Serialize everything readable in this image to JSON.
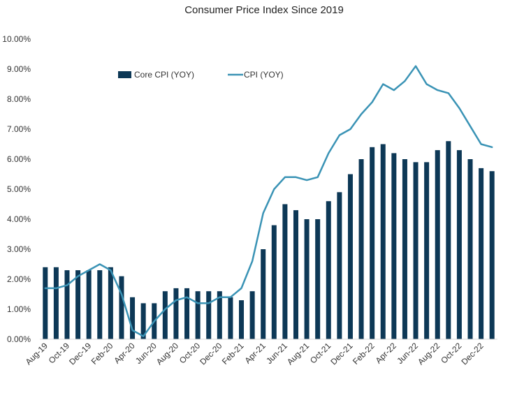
{
  "chart_data": {
    "type": "bar",
    "title": "Consumer Price Index Since 2019",
    "xlabel": "",
    "ylabel": "",
    "ylim": [
      0,
      10
    ],
    "yticks": [
      "0.00%",
      "1.00%",
      "2.00%",
      "3.00%",
      "4.00%",
      "5.00%",
      "6.00%",
      "7.00%",
      "8.00%",
      "9.00%",
      "10.00%"
    ],
    "grid": false,
    "legend_position": "top-left",
    "colors": {
      "bar": "#0d3856",
      "line": "#3a93b5"
    },
    "categories": [
      "Aug-19",
      "Sep-19",
      "Oct-19",
      "Nov-19",
      "Dec-19",
      "Jan-20",
      "Feb-20",
      "Mar-20",
      "Apr-20",
      "May-20",
      "Jun-20",
      "Jul-20",
      "Aug-20",
      "Sep-20",
      "Oct-20",
      "Nov-20",
      "Dec-20",
      "Jan-21",
      "Feb-21",
      "Mar-21",
      "Apr-21",
      "May-21",
      "Jun-21",
      "Jul-21",
      "Aug-21",
      "Sep-21",
      "Oct-21",
      "Nov-21",
      "Dec-21",
      "Jan-22",
      "Feb-22",
      "Mar-22",
      "Apr-22",
      "May-22",
      "Jun-22",
      "Jul-22",
      "Aug-22",
      "Sep-22",
      "Oct-22",
      "Nov-22",
      "Dec-22",
      "Jan-23"
    ],
    "xtick_labels": [
      "Aug-19",
      "Oct-19",
      "Dec-19",
      "Feb-20",
      "Apr-20",
      "Jun-20",
      "Aug-20",
      "Oct-20",
      "Dec-20",
      "Feb-21",
      "Apr-21",
      "Jun-21",
      "Aug-21",
      "Oct-21",
      "Dec-21",
      "Feb-22",
      "Apr-22",
      "Jun-22",
      "Aug-22",
      "Oct-22",
      "Dec-22"
    ],
    "series": [
      {
        "name": "Core CPI (YOY)",
        "kind": "bar",
        "values": [
          2.4,
          2.4,
          2.3,
          2.3,
          2.3,
          2.3,
          2.4,
          2.1,
          1.4,
          1.2,
          1.2,
          1.6,
          1.7,
          1.7,
          1.6,
          1.6,
          1.6,
          1.4,
          1.3,
          1.6,
          3.0,
          3.8,
          4.5,
          4.3,
          4.0,
          4.0,
          4.6,
          4.9,
          5.5,
          6.0,
          6.4,
          6.5,
          6.2,
          6.0,
          5.9,
          5.9,
          6.3,
          6.6,
          6.3,
          6.0,
          5.7,
          5.6
        ]
      },
      {
        "name": "CPI (YOY)",
        "kind": "line",
        "values": [
          1.7,
          1.7,
          1.8,
          2.1,
          2.3,
          2.5,
          2.3,
          1.5,
          0.3,
          0.1,
          0.6,
          1.0,
          1.3,
          1.4,
          1.2,
          1.2,
          1.4,
          1.4,
          1.7,
          2.6,
          4.2,
          5.0,
          5.4,
          5.4,
          5.3,
          5.4,
          6.2,
          6.8,
          7.0,
          7.5,
          7.9,
          8.5,
          8.3,
          8.6,
          9.1,
          8.5,
          8.3,
          8.2,
          7.7,
          7.1,
          6.5,
          6.4
        ]
      }
    ]
  }
}
